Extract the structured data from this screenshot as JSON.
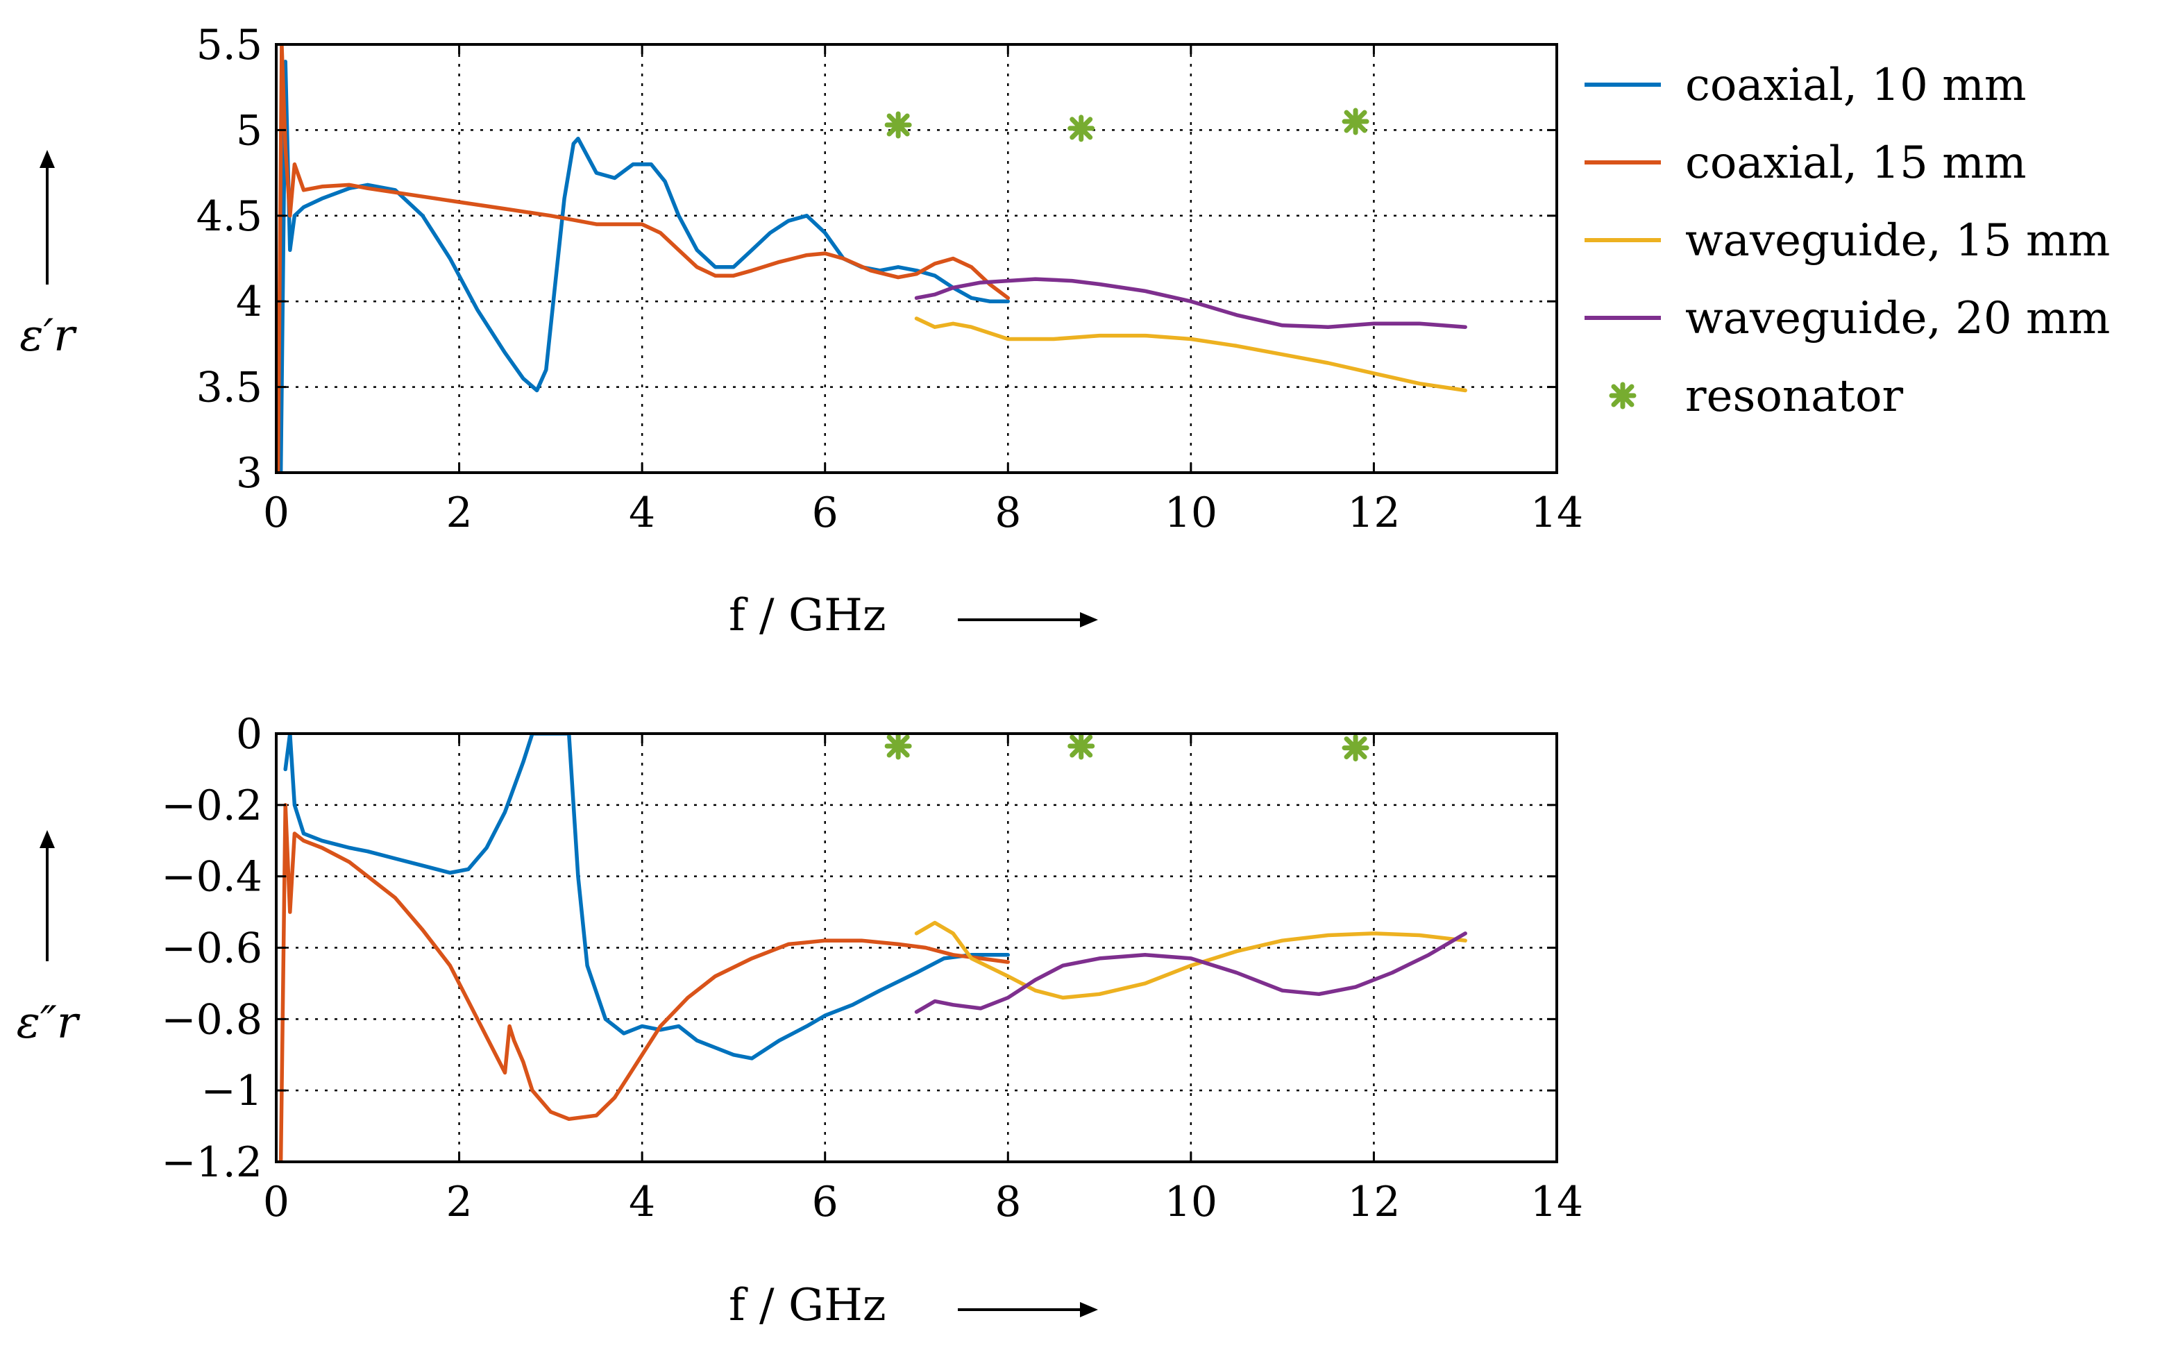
{
  "colors": {
    "coaxial_10": "#0072bd",
    "coaxial_15": "#d95319",
    "waveguide_15": "#edb120",
    "waveguide_20": "#7e2f8e",
    "resonator": "#77ac30"
  },
  "legend": {
    "placement": "right-of-top-panel",
    "entries": [
      {
        "label": "coaxial, 10 mm",
        "color": "#0072bd",
        "kind": "line"
      },
      {
        "label": "coaxial, 15 mm",
        "color": "#d95319",
        "kind": "line"
      },
      {
        "label": "waveguide, 15 mm",
        "color": "#edb120",
        "kind": "line"
      },
      {
        "label": "waveguide, 20 mm",
        "color": "#7e2f8e",
        "kind": "line"
      },
      {
        "label": "resonator",
        "color": "#77ac30",
        "kind": "marker-x"
      }
    ]
  },
  "chart_data": [
    {
      "type": "line",
      "xlabel": "f / GHz",
      "ylabel": "ε′r",
      "xlim": [
        0,
        14
      ],
      "ylim": [
        3,
        5.5
      ],
      "xticks": [
        0,
        2,
        4,
        6,
        8,
        10,
        12,
        14
      ],
      "xtick_labels": [
        "0",
        "2",
        "4",
        "6",
        "8",
        "10",
        "12",
        "14"
      ],
      "yticks": [
        3,
        3.5,
        4,
        4.5,
        5,
        5.5
      ],
      "ytick_labels": [
        "3",
        "3.5",
        "4",
        "4.5",
        "5",
        "5.5"
      ],
      "grid": true,
      "series": [
        {
          "name": "coaxial, 10 mm",
          "color": "#0072bd",
          "x": [
            0.05,
            0.1,
            0.15,
            0.2,
            0.3,
            0.5,
            0.8,
            1.0,
            1.3,
            1.6,
            1.9,
            2.2,
            2.5,
            2.7,
            2.85,
            2.95,
            3.05,
            3.15,
            3.25,
            3.3,
            3.5,
            3.7,
            3.9,
            4.1,
            4.25,
            4.4,
            4.6,
            4.8,
            5.0,
            5.2,
            5.4,
            5.6,
            5.8,
            6.0,
            6.2,
            6.4,
            6.6,
            6.8,
            7.0,
            7.2,
            7.4,
            7.6,
            7.8,
            8.0
          ],
          "y": [
            3.0,
            5.4,
            4.3,
            4.5,
            4.55,
            4.6,
            4.66,
            4.68,
            4.65,
            4.5,
            4.25,
            3.95,
            3.7,
            3.55,
            3.48,
            3.6,
            4.1,
            4.6,
            4.92,
            4.95,
            4.75,
            4.72,
            4.8,
            4.8,
            4.7,
            4.5,
            4.3,
            4.2,
            4.2,
            4.3,
            4.4,
            4.47,
            4.5,
            4.4,
            4.25,
            4.2,
            4.18,
            4.2,
            4.18,
            4.15,
            4.08,
            4.02,
            4.0,
            4.0
          ]
        },
        {
          "name": "coaxial, 15 mm",
          "color": "#d95319",
          "x": [
            0.02,
            0.06,
            0.1,
            0.15,
            0.2,
            0.3,
            0.5,
            0.8,
            1.0,
            1.5,
            2.0,
            2.5,
            3.0,
            3.5,
            4.0,
            4.2,
            4.4,
            4.6,
            4.8,
            5.0,
            5.2,
            5.5,
            5.8,
            6.0,
            6.2,
            6.5,
            6.8,
            7.0,
            7.2,
            7.4,
            7.6,
            7.8,
            8.0
          ],
          "y": [
            3.0,
            5.5,
            4.9,
            4.5,
            4.8,
            4.65,
            4.67,
            4.68,
            4.66,
            4.62,
            4.58,
            4.54,
            4.5,
            4.45,
            4.45,
            4.4,
            4.3,
            4.2,
            4.15,
            4.15,
            4.18,
            4.23,
            4.27,
            4.28,
            4.25,
            4.18,
            4.14,
            4.16,
            4.22,
            4.25,
            4.2,
            4.1,
            4.02
          ]
        },
        {
          "name": "waveguide, 15 mm",
          "color": "#edb120",
          "x": [
            7.0,
            7.2,
            7.4,
            7.6,
            8.0,
            8.5,
            9.0,
            9.5,
            10.0,
            10.5,
            11.0,
            11.5,
            12.0,
            12.5,
            13.0
          ],
          "y": [
            3.9,
            3.85,
            3.87,
            3.85,
            3.78,
            3.78,
            3.8,
            3.8,
            3.78,
            3.74,
            3.69,
            3.64,
            3.58,
            3.52,
            3.48
          ]
        },
        {
          "name": "waveguide, 20 mm",
          "color": "#7e2f8e",
          "x": [
            7.0,
            7.2,
            7.4,
            7.7,
            8.0,
            8.3,
            8.7,
            9.0,
            9.5,
            10.0,
            10.5,
            11.0,
            11.5,
            12.0,
            12.5,
            13.0
          ],
          "y": [
            4.02,
            4.04,
            4.08,
            4.11,
            4.12,
            4.13,
            4.12,
            4.1,
            4.06,
            4.0,
            3.92,
            3.86,
            3.85,
            3.87,
            3.87,
            3.85
          ]
        },
        {
          "name": "resonator",
          "color": "#77ac30",
          "marker": "x",
          "x": [
            6.8,
            8.8,
            11.8
          ],
          "y": [
            5.03,
            5.01,
            5.05
          ]
        }
      ]
    },
    {
      "type": "line",
      "xlabel": "f / GHz",
      "ylabel": "ε″r",
      "xlim": [
        0,
        14
      ],
      "ylim": [
        -1.2,
        0
      ],
      "xticks": [
        0,
        2,
        4,
        6,
        8,
        10,
        12,
        14
      ],
      "xtick_labels": [
        "0",
        "2",
        "4",
        "6",
        "8",
        "10",
        "12",
        "14"
      ],
      "yticks": [
        -1.2,
        -1,
        -0.8,
        -0.6,
        -0.4,
        -0.2,
        0
      ],
      "ytick_labels": [
        "−1.2",
        "−1",
        "−0.8",
        "−0.6",
        "−0.4",
        "−0.2",
        "0"
      ],
      "grid": true,
      "series": [
        {
          "name": "coaxial, 10 mm",
          "color": "#0072bd",
          "x": [
            0.1,
            0.15,
            0.2,
            0.3,
            0.5,
            0.8,
            1.0,
            1.3,
            1.6,
            1.9,
            2.1,
            2.3,
            2.5,
            2.7,
            2.8,
            2.85,
            3.2,
            3.3,
            3.4,
            3.6,
            3.8,
            4.0,
            4.2,
            4.4,
            4.6,
            4.8,
            5.0,
            5.2,
            5.5,
            5.8,
            6.0,
            6.3,
            6.6,
            7.0,
            7.3,
            7.6,
            8.0
          ],
          "y": [
            -0.1,
            0.0,
            -0.2,
            -0.28,
            -0.3,
            -0.32,
            -0.33,
            -0.35,
            -0.37,
            -0.39,
            -0.38,
            -0.32,
            -0.22,
            -0.08,
            0.0,
            0.0,
            0.0,
            -0.4,
            -0.65,
            -0.8,
            -0.84,
            -0.82,
            -0.83,
            -0.82,
            -0.86,
            -0.88,
            -0.9,
            -0.91,
            -0.86,
            -0.82,
            -0.79,
            -0.76,
            -0.72,
            -0.67,
            -0.63,
            -0.62,
            -0.62
          ]
        },
        {
          "name": "coaxial, 15 mm",
          "color": "#d95319",
          "x": [
            0.05,
            0.1,
            0.15,
            0.2,
            0.3,
            0.5,
            0.8,
            1.0,
            1.3,
            1.6,
            1.9,
            2.1,
            2.3,
            2.5,
            2.55,
            2.6,
            2.7,
            2.8,
            3.0,
            3.2,
            3.5,
            3.7,
            3.9,
            4.2,
            4.5,
            4.8,
            5.2,
            5.6,
            6.0,
            6.4,
            6.8,
            7.1,
            7.4,
            7.7,
            8.0
          ],
          "y": [
            -1.2,
            -0.2,
            -0.5,
            -0.28,
            -0.3,
            -0.32,
            -0.36,
            -0.4,
            -0.46,
            -0.55,
            -0.65,
            -0.75,
            -0.85,
            -0.95,
            -0.82,
            -0.86,
            -0.92,
            -1.0,
            -1.06,
            -1.08,
            -1.07,
            -1.02,
            -0.94,
            -0.82,
            -0.74,
            -0.68,
            -0.63,
            -0.59,
            -0.58,
            -0.58,
            -0.59,
            -0.6,
            -0.62,
            -0.63,
            -0.64
          ]
        },
        {
          "name": "waveguide, 15 mm",
          "color": "#edb120",
          "x": [
            7.0,
            7.2,
            7.4,
            7.6,
            8.0,
            8.3,
            8.6,
            9.0,
            9.5,
            10.0,
            10.5,
            11.0,
            11.5,
            12.0,
            12.5,
            13.0
          ],
          "y": [
            -0.56,
            -0.53,
            -0.56,
            -0.63,
            -0.68,
            -0.72,
            -0.74,
            -0.73,
            -0.7,
            -0.65,
            -0.61,
            -0.58,
            -0.565,
            -0.56,
            -0.565,
            -0.58
          ]
        },
        {
          "name": "waveguide, 20 mm",
          "color": "#7e2f8e",
          "x": [
            7.0,
            7.2,
            7.4,
            7.7,
            8.0,
            8.3,
            8.6,
            9.0,
            9.5,
            10.0,
            10.5,
            11.0,
            11.4,
            11.8,
            12.2,
            12.6,
            13.0
          ],
          "y": [
            -0.78,
            -0.75,
            -0.76,
            -0.77,
            -0.74,
            -0.69,
            -0.65,
            -0.63,
            -0.62,
            -0.63,
            -0.67,
            -0.72,
            -0.73,
            -0.71,
            -0.67,
            -0.62,
            -0.56
          ]
        },
        {
          "name": "resonator",
          "color": "#77ac30",
          "marker": "x",
          "x": [
            6.8,
            8.8,
            11.8
          ],
          "y": [
            -0.035,
            -0.035,
            -0.04
          ]
        }
      ]
    }
  ]
}
